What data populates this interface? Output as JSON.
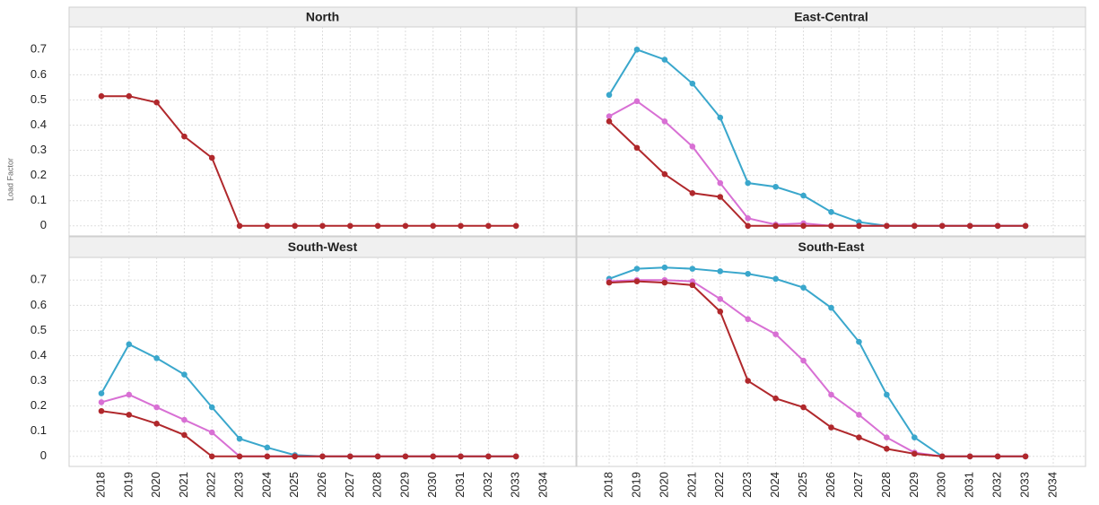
{
  "chart_data": {
    "type": "line",
    "ylabel": "Load Factor",
    "categories": [
      "2018",
      "2019",
      "2020",
      "2021",
      "2022",
      "2023",
      "2024",
      "2025",
      "2026",
      "2027",
      "2028",
      "2029",
      "2030",
      "2031",
      "2032",
      "2033",
      "2034"
    ],
    "ylim": [
      -0.04,
      0.79
    ],
    "yticks": [
      0,
      0.1,
      0.2,
      0.3,
      0.4,
      0.5,
      0.6,
      0.7
    ],
    "grid": true,
    "panels": [
      {
        "title": "North",
        "series": [
          {
            "color": "#b0282c",
            "values": [
              0.515,
              0.515,
              0.49,
              0.355,
              0.27,
              0,
              0,
              0,
              0,
              0,
              0,
              0,
              0,
              0,
              0,
              0,
              null
            ]
          }
        ]
      },
      {
        "title": "East-Central",
        "series": [
          {
            "color": "#3aa7cc",
            "values": [
              0.52,
              0.7,
              0.66,
              0.565,
              0.43,
              0.17,
              0.155,
              0.12,
              0.055,
              0.015,
              0,
              0,
              0,
              0,
              0,
              0,
              null
            ]
          },
          {
            "color": "#d870d4",
            "values": [
              0.435,
              0.495,
              0.415,
              0.315,
              0.17,
              0.03,
              0.005,
              0.01,
              0,
              0,
              0,
              0,
              0,
              0,
              0,
              0,
              null
            ]
          },
          {
            "color": "#b0282c",
            "values": [
              0.415,
              0.31,
              0.205,
              0.13,
              0.115,
              0,
              0,
              0,
              0,
              0,
              0,
              0,
              0,
              0,
              0,
              0,
              null
            ]
          }
        ]
      },
      {
        "title": "South-West",
        "series": [
          {
            "color": "#3aa7cc",
            "values": [
              0.25,
              0.445,
              0.39,
              0.325,
              0.195,
              0.07,
              0.035,
              0.005,
              0,
              0,
              0,
              0,
              0,
              0,
              0,
              0,
              null
            ]
          },
          {
            "color": "#d870d4",
            "values": [
              0.215,
              0.245,
              0.195,
              0.145,
              0.095,
              0,
              0,
              0,
              0,
              0,
              0,
              0,
              0,
              0,
              0,
              0,
              null
            ]
          },
          {
            "color": "#b0282c",
            "values": [
              0.18,
              0.165,
              0.13,
              0.085,
              0,
              0,
              0,
              0,
              0,
              0,
              0,
              0,
              0,
              0,
              0,
              0,
              null
            ]
          }
        ]
      },
      {
        "title": "South-East",
        "series": [
          {
            "color": "#3aa7cc",
            "values": [
              0.705,
              0.745,
              0.75,
              0.745,
              0.735,
              0.725,
              0.705,
              0.67,
              0.59,
              0.455,
              0.245,
              0.075,
              0,
              0,
              0,
              0,
              null
            ]
          },
          {
            "color": "#d870d4",
            "values": [
              0.695,
              0.7,
              0.7,
              0.695,
              0.625,
              0.545,
              0.485,
              0.38,
              0.245,
              0.165,
              0.075,
              0.015,
              0,
              0,
              0,
              0,
              null
            ]
          },
          {
            "color": "#b0282c",
            "values": [
              0.69,
              0.695,
              0.69,
              0.68,
              0.575,
              0.3,
              0.23,
              0.195,
              0.115,
              0.075,
              0.03,
              0.01,
              0,
              0,
              0,
              0,
              null
            ]
          }
        ]
      }
    ]
  }
}
